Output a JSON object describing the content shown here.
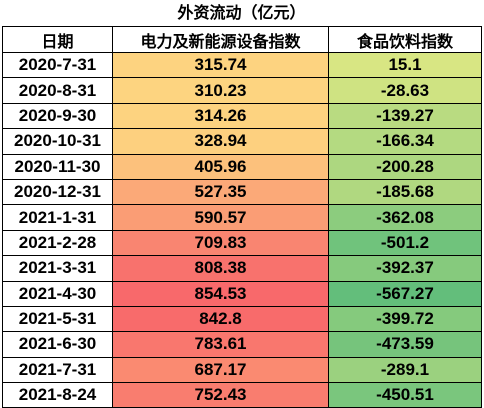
{
  "chart_data": {
    "type": "table",
    "title": "外资流动（亿元）",
    "columns": [
      "日期",
      "电力及新能源设备指数",
      "食品饮料指数"
    ],
    "rows": [
      {
        "date": "2020-7-31",
        "power": 315.74,
        "food": 15.1
      },
      {
        "date": "2020-8-31",
        "power": 310.23,
        "food": -28.63
      },
      {
        "date": "2020-9-30",
        "power": 314.26,
        "food": -139.27
      },
      {
        "date": "2020-10-31",
        "power": 328.94,
        "food": -166.34
      },
      {
        "date": "2020-11-30",
        "power": 405.96,
        "food": -200.28
      },
      {
        "date": "2020-12-31",
        "power": 527.35,
        "food": -185.68
      },
      {
        "date": "2021-1-31",
        "power": 590.57,
        "food": -362.08
      },
      {
        "date": "2021-2-28",
        "power": 709.83,
        "food": -501.2
      },
      {
        "date": "2021-3-31",
        "power": 808.38,
        "food": -392.37
      },
      {
        "date": "2021-4-30",
        "power": 854.53,
        "food": -567.27
      },
      {
        "date": "2021-5-31",
        "power": 842.8,
        "food": -399.72
      },
      {
        "date": "2021-6-30",
        "power": 783.61,
        "food": -473.59
      },
      {
        "date": "2021-7-31",
        "power": 687.17,
        "food": -289.1
      },
      {
        "date": "2021-8-24",
        "power": 752.43,
        "food": -450.51
      }
    ],
    "color_scale": {
      "power": {
        "low": "#FDD480",
        "high": "#F8696B"
      },
      "food": {
        "high": "#D8E683",
        "low": "#63BE7B"
      }
    }
  }
}
